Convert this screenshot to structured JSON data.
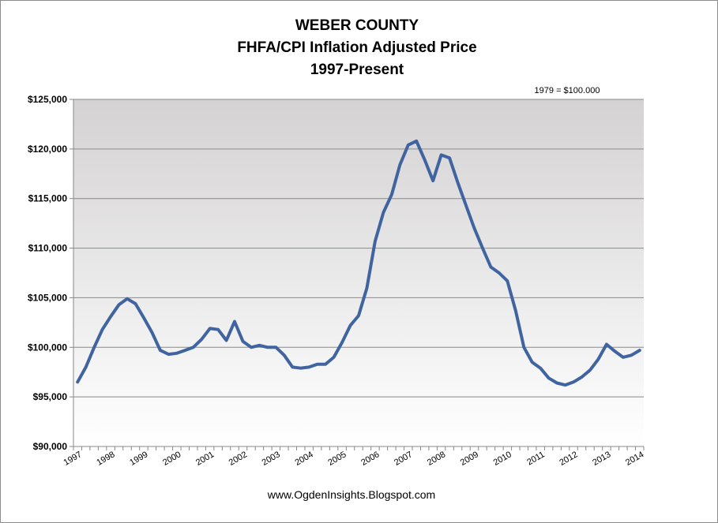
{
  "chart_data": {
    "type": "line",
    "title": "WEBER COUNTY",
    "subtitle": [
      "FHFA/CPI Inflation Adjusted Price",
      "1997-Present"
    ],
    "annotation": "1979 = $100.000",
    "source": "www.OgdenInsights.Blogspot.com",
    "xlabel": "",
    "ylabel": "",
    "ylim": [
      90000,
      125000
    ],
    "y_ticks": [
      90000,
      95000,
      100000,
      105000,
      110000,
      115000,
      120000,
      125000
    ],
    "y_tick_labels": [
      "$90,000",
      "$95,000",
      "$100,000",
      "$105,000",
      "$110,000",
      "$115,000",
      "$120,000",
      "$125,000"
    ],
    "x_tick_labels": [
      "1997",
      "1998",
      "1999",
      "2000",
      "2001",
      "2002",
      "2003",
      "2004",
      "2005",
      "2006",
      "2007",
      "2008",
      "2009",
      "2010",
      "2011",
      "2012",
      "2013",
      "2014"
    ],
    "grid": true,
    "legend": "none",
    "line_color": "#3f64a0",
    "plot_background": [
      "#ffffff",
      "#d4d2d2"
    ],
    "series": [
      {
        "values": [
          96500,
          98000,
          100000,
          101800,
          103100,
          104300,
          104900,
          104400,
          103000,
          101500,
          99700,
          99300,
          99400,
          99700,
          100000,
          100800,
          101900,
          101800,
          100700,
          102600,
          100600,
          100000,
          100200,
          100000,
          100000,
          99200,
          98000,
          97900,
          98000,
          98300,
          98300,
          99000,
          100500,
          102200,
          103200,
          106000,
          110700,
          113600,
          115400,
          118400,
          120400,
          120800,
          118900,
          116800,
          119400,
          119100,
          116600,
          114300,
          112000,
          110000,
          108100,
          107500,
          106700,
          103700,
          100000,
          98500,
          97900,
          96900,
          96400,
          96200,
          96500,
          97000,
          97700,
          98800,
          100300,
          99600,
          99000,
          99200,
          99700
        ]
      }
    ]
  }
}
